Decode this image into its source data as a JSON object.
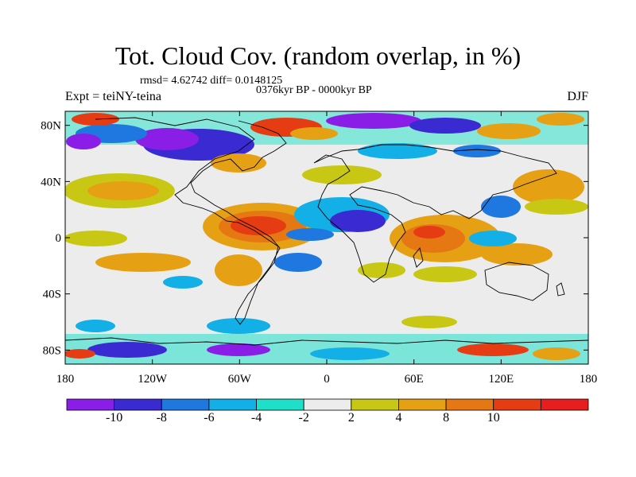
{
  "header": {
    "title": "Tot. Cloud Cov. (random overlap, in %)",
    "stats": "rmsd= 4.62742 diff= 0.0148125",
    "period": "0376kyr BP - 0000kyr BP",
    "experiment": "Expt = teiNY-teina",
    "season": "DJF"
  },
  "axes": {
    "lat_labels": [
      "80N",
      "40N",
      "0",
      "40S",
      "80S"
    ],
    "lat_values": [
      80,
      40,
      0,
      -40,
      -80
    ],
    "lon_labels": [
      "180",
      "120W",
      "60W",
      "0",
      "60E",
      "120E",
      "180"
    ],
    "lon_values": [
      -180,
      -120,
      -60,
      0,
      60,
      120,
      180
    ]
  },
  "colorbar": {
    "labels": [
      "-10",
      "-8",
      "-6",
      "-4",
      "-2",
      "2",
      "4",
      "8",
      "10"
    ],
    "colors": [
      "#8a1ee6",
      "#3a2ad2",
      "#1e78e0",
      "#12b0e6",
      "#1ee0c8",
      "#ececec",
      "#c8c814",
      "#e6a014",
      "#e67814",
      "#e63c14",
      "#e61e1e"
    ]
  },
  "map_palette": {
    "neutral": "#ececec",
    "land_outline": "#000000"
  }
}
